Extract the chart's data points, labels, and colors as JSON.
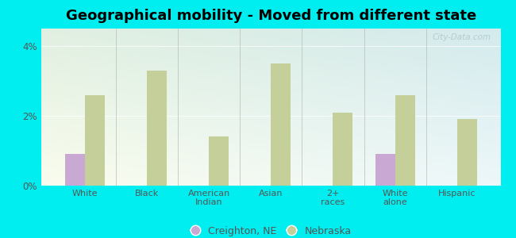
{
  "title": "Geographical mobility - Moved from different state",
  "categories": [
    "White",
    "Black",
    "American\nIndian",
    "Asian",
    "2+\nraces",
    "White\nalone",
    "Hispanic"
  ],
  "creighton_values": [
    0.9,
    0.0,
    0.0,
    0.0,
    0.0,
    0.9,
    0.0
  ],
  "nebraska_values": [
    2.6,
    3.3,
    1.4,
    3.5,
    2.1,
    2.6,
    1.9
  ],
  "creighton_color": "#c9a8d4",
  "nebraska_color": "#c5cf9a",
  "background_color": "#00eef0",
  "ylim": [
    0,
    4.5
  ],
  "yticks": [
    0,
    2,
    4
  ],
  "ytick_labels": [
    "0%",
    "2%",
    "4%"
  ],
  "bar_width": 0.32,
  "title_fontsize": 13,
  "legend_labels": [
    "Creighton, NE",
    "Nebraska"
  ],
  "watermark": "City-Data.com"
}
